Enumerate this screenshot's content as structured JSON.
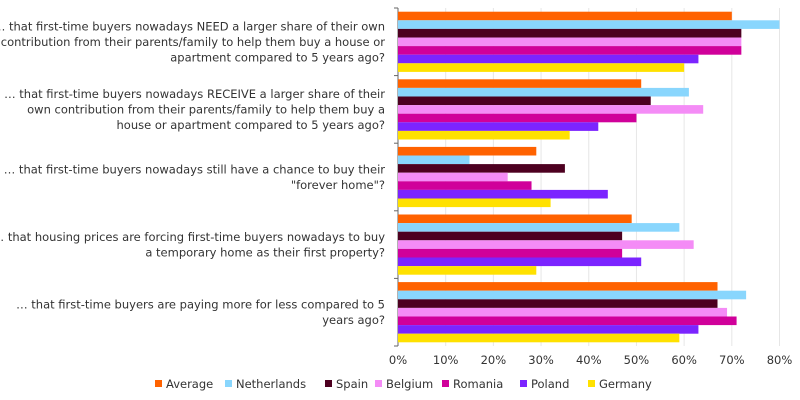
{
  "chart_data": {
    "type": "bar",
    "orientation": "horizontal",
    "categories": [
      "… that first-time buyers nowadays NEED a larger share of their own contribution from their parents/family to help them buy a house or apartment compared to 5 years ago?",
      "… that first-time buyers nowadays RECEIVE a larger share of their own contribution from their parents/family to help them buy a house or apartment compared to 5 years ago?",
      "… that first-time buyers nowadays still have a chance to buy their \"forever home\"?",
      "… that housing prices are forcing first-time buyers nowadays to buy a temporary home as their first property?",
      "… that first-time buyers are paying more for less compared to 5 years ago?"
    ],
    "category_lines": [
      [
        "… that first-time buyers nowadays NEED a larger share of their own",
        "contribution from their parents/family to help them buy a house or",
        "apartment compared to 5 years ago?"
      ],
      [
        "… that first-time buyers nowadays RECEIVE a larger share of their",
        "own contribution from their parents/family to help them buy a",
        "house or apartment compared to 5 years ago?"
      ],
      [
        "… that first-time buyers nowadays still have a chance to buy their",
        "\"forever home\"?"
      ],
      [
        "… that housing prices are forcing first-time buyers nowadays to buy",
        "a temporary home as their first property?"
      ],
      [
        "… that first-time buyers are paying more for less compared to 5",
        "years ago?"
      ]
    ],
    "series": [
      {
        "name": "Average",
        "color": "#FF6200",
        "values": [
          70,
          51,
          29,
          49,
          67
        ]
      },
      {
        "name": "Netherlands",
        "color": "#89D6FD",
        "values": [
          80,
          61,
          15,
          59,
          73
        ]
      },
      {
        "name": "Spain",
        "color": "#4D0020",
        "values": [
          72,
          53,
          35,
          47,
          67
        ]
      },
      {
        "name": "Belgium",
        "color": "#F48CF6",
        "values": [
          72,
          64,
          23,
          62,
          69
        ]
      },
      {
        "name": "Romania",
        "color": "#D0009A",
        "values": [
          72,
          50,
          28,
          47,
          71
        ]
      },
      {
        "name": "Poland",
        "color": "#7B24FF",
        "values": [
          63,
          42,
          44,
          51,
          63
        ]
      },
      {
        "name": "Germany",
        "color": "#FFE100",
        "values": [
          60,
          36,
          32,
          29,
          59
        ]
      }
    ],
    "xlim": [
      0,
      80
    ],
    "xticks": [
      "0%",
      "10%",
      "20%",
      "30%",
      "40%",
      "50%",
      "60%",
      "70%",
      "80%"
    ],
    "grid": true,
    "legend": "bottom"
  }
}
